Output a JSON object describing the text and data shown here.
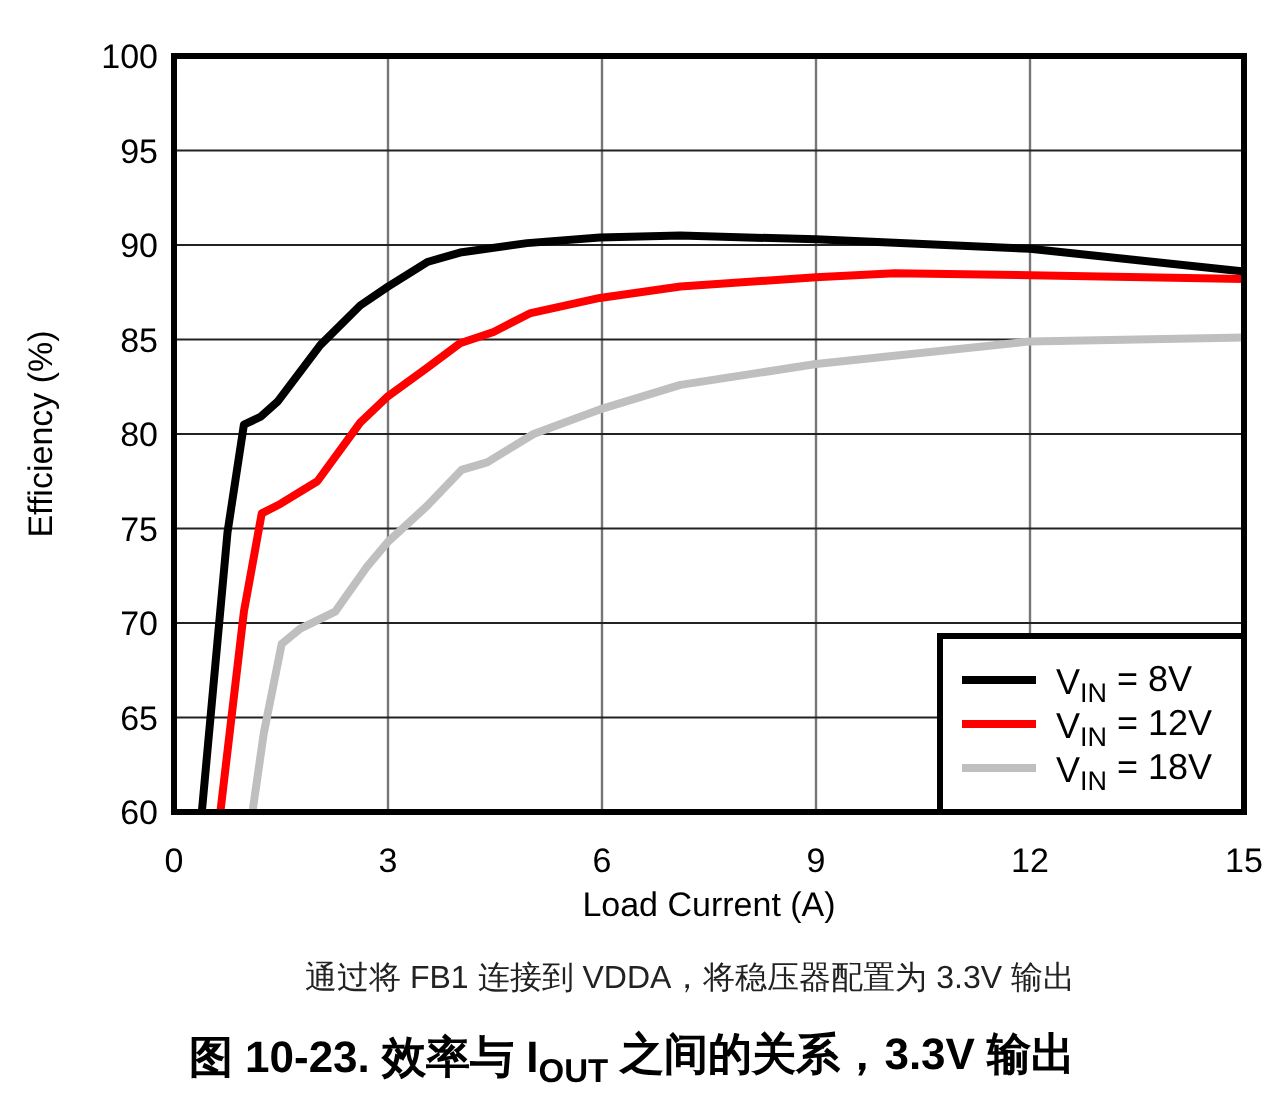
{
  "chart_data": {
    "type": "line",
    "title": "图 10-23. 效率与 I$_{OUT}$ 之间的关系，3.3V 输出",
    "xlabel": "Load Current (A)",
    "ylabel": "Efficiency (%)",
    "annotations": [
      "通过将 FB1 连接到 VDDA，将稳压器配置为 3.3V 输出"
    ],
    "xlim": [
      0,
      15
    ],
    "xticks": [
      0,
      3,
      6,
      9,
      12,
      15
    ],
    "ylim": [
      60,
      100
    ],
    "yticks": [
      60,
      65,
      70,
      75,
      80,
      85,
      90,
      95,
      100
    ],
    "grid": true,
    "legend": "bottom right",
    "line_style": "solid",
    "series": [
      {
        "name": "V$_{IN}$ = 8V",
        "color": "#000000",
        "x": [
          0.39,
          0.75,
          0.98,
          1.21,
          1.45,
          2.05,
          2.61,
          3.0,
          3.55,
          4.01,
          4.95,
          5.97,
          7.1,
          9,
          12,
          15
        ],
        "values": [
          60,
          74.8,
          80.5,
          80.9,
          81.7,
          84.7,
          86.8,
          87.8,
          89.1,
          89.6,
          90.1,
          90.4,
          90.5,
          90.3,
          89.8,
          88.6
        ]
      },
      {
        "name": "V$_{IN}$ = 12V",
        "color": "#ff0000",
        "x": [
          0.65,
          0.98,
          1.23,
          1.49,
          2.01,
          2.61,
          3.0,
          3.55,
          4.01,
          4.48,
          5.0,
          5.97,
          7.1,
          9,
          10.1,
          12,
          15
        ],
        "values": [
          60,
          70.6,
          75.8,
          76.3,
          77.5,
          80.6,
          82.0,
          83.5,
          84.8,
          85.4,
          86.4,
          87.2,
          87.8,
          88.3,
          88.5,
          88.4,
          88.2
        ]
      },
      {
        "name": "V$_{IN}$ = 18V",
        "color": "#bfbfbf",
        "x": [
          1.1,
          1.26,
          1.51,
          1.77,
          2.26,
          2.71,
          3.0,
          3.55,
          4.03,
          4.39,
          5.04,
          5.97,
          7.1,
          9,
          12,
          15
        ],
        "values": [
          60,
          64.2,
          68.9,
          69.7,
          70.6,
          73.0,
          74.3,
          76.2,
          78.1,
          78.5,
          80.0,
          81.3,
          82.6,
          83.7,
          84.9,
          85.1
        ]
      }
    ]
  }
}
